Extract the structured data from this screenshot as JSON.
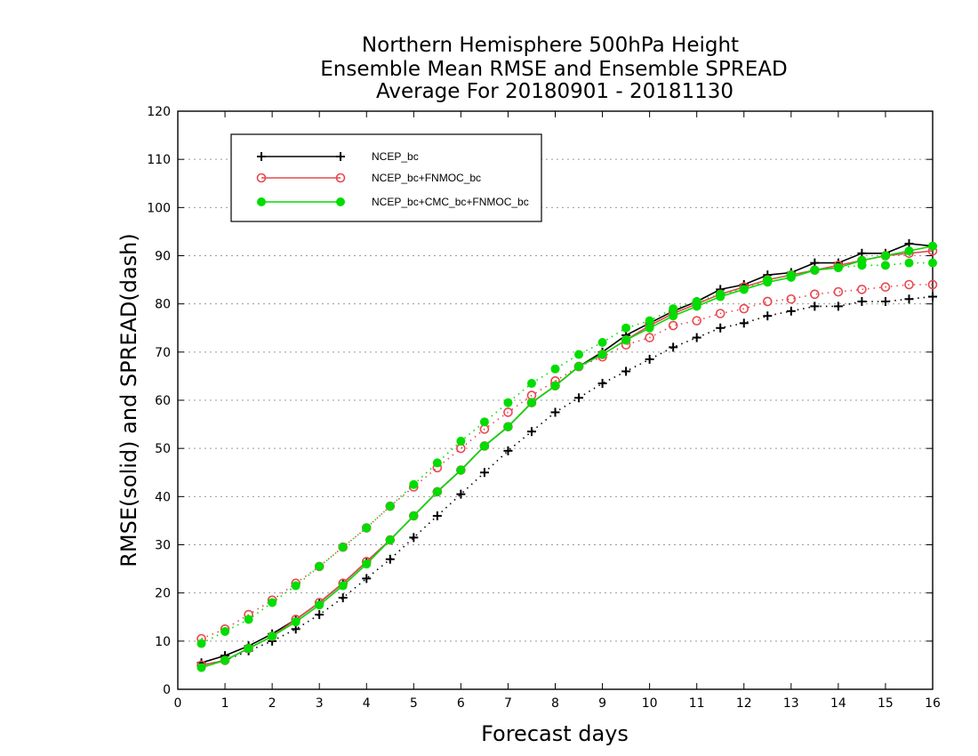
{
  "chart_data": {
    "type": "line",
    "title": [
      "Northern Hemisphere 500hPa Height",
      "Ensemble Mean RMSE and Ensemble SPREAD",
      "Average For 20180901 - 20181130"
    ],
    "xlabel": "Forecast days",
    "ylabel": "RMSE(solid) and SPREAD(dash)",
    "xlim": [
      0,
      16
    ],
    "ylim": [
      0,
      120
    ],
    "x_ticks": [
      "0",
      "1",
      "2",
      "3",
      "4",
      "5",
      "6",
      "7",
      "8",
      "9",
      "10",
      "11",
      "12",
      "13",
      "14",
      "15",
      "16"
    ],
    "y_ticks": [
      "0",
      "10",
      "20",
      "30",
      "40",
      "50",
      "60",
      "70",
      "80",
      "90",
      "100",
      "110",
      "120"
    ],
    "grid": "horizontal dotted",
    "legend_position": "top-left",
    "x": [
      0.5,
      1,
      1.5,
      2,
      2.5,
      3,
      3.5,
      4,
      4.5,
      5,
      5.5,
      6,
      6.5,
      7,
      7.5,
      8,
      8.5,
      9,
      9.5,
      10,
      10.5,
      11,
      11.5,
      12,
      12.5,
      13,
      13.5,
      14,
      14.5,
      15,
      15.5,
      16
    ],
    "series": [
      {
        "name": "NCEP_bc",
        "color": "#000000",
        "marker": "plus",
        "rmse": [
          5.5,
          7,
          9,
          11.5,
          14.5,
          18,
          22,
          26.5,
          31,
          36,
          41,
          45.5,
          50.5,
          54.5,
          59.5,
          63,
          67,
          70,
          73.5,
          76,
          78.5,
          80.5,
          83,
          84,
          86,
          86.5,
          88.5,
          88.5,
          90.5,
          90.5,
          92.5,
          92
        ],
        "spread": [
          5,
          6,
          8,
          10,
          12.5,
          15.5,
          19,
          23,
          27,
          31.5,
          36,
          40.5,
          45,
          49.5,
          53.5,
          57.5,
          60.5,
          63.5,
          66,
          68.5,
          71,
          73,
          75,
          76,
          77.5,
          78.5,
          79.5,
          79.5,
          80.5,
          80.5,
          81,
          81.5
        ]
      },
      {
        "name": "NCEP_bc+FNMOC_bc",
        "color": "#e8484f",
        "marker": "open-circle",
        "rmse": [
          5,
          6,
          8.5,
          11,
          14.5,
          18,
          22,
          26.5,
          31,
          36,
          41,
          45.5,
          50.5,
          54.5,
          59.5,
          63,
          67,
          69.5,
          72.5,
          75.5,
          78,
          80,
          82,
          83.5,
          85,
          86,
          87,
          88,
          89,
          90,
          90.5,
          91
        ],
        "spread": [
          10.5,
          12.5,
          15.5,
          18.5,
          22,
          25.5,
          29.5,
          33.5,
          38,
          42,
          46,
          50,
          54,
          57.5,
          61,
          64,
          67,
          69,
          71.5,
          73,
          75.5,
          76.5,
          78,
          79,
          80.5,
          81,
          82,
          82.5,
          83,
          83.5,
          84,
          84
        ]
      },
      {
        "name": "NCEP_bc+CMC_bc+FNMOC_bc",
        "color": "#00dd00",
        "marker": "filled-circle",
        "rmse": [
          4.5,
          6,
          8.5,
          11,
          14,
          17.5,
          21.5,
          26,
          31,
          36,
          41,
          45.5,
          50.5,
          54.5,
          59.5,
          63,
          67,
          69.5,
          72.5,
          75,
          77.5,
          79.5,
          81.5,
          83,
          84.5,
          85.5,
          87,
          87.5,
          89,
          90,
          91,
          92
        ],
        "spread": [
          9.5,
          12,
          14.5,
          18,
          21.5,
          25.5,
          29.5,
          33.5,
          38,
          42.5,
          47,
          51.5,
          55.5,
          59.5,
          63.5,
          66.5,
          69.5,
          72,
          75,
          76.5,
          79,
          80.5,
          82,
          83,
          85,
          86,
          87,
          87.5,
          88,
          88,
          88.5,
          88.5
        ]
      }
    ]
  }
}
